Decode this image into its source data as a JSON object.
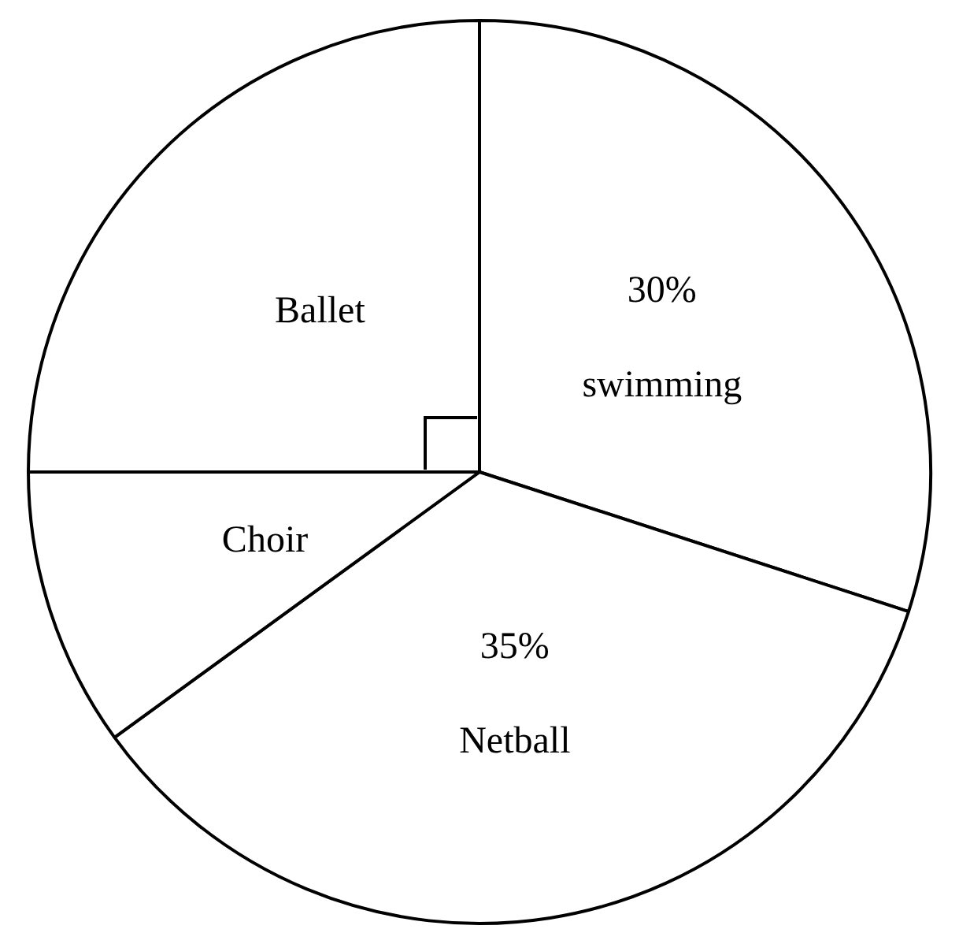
{
  "chart_data": {
    "type": "pie",
    "categories": [
      "swimming",
      "Netball",
      "Choir",
      "Ballet"
    ],
    "values": [
      30,
      35,
      10,
      25
    ],
    "colors": [
      "#ffffff",
      "#ffffff",
      "#ffffff",
      "#ffffff"
    ],
    "value_labels": [
      "30%",
      "35%",
      null,
      null
    ],
    "legend": false
  }
}
